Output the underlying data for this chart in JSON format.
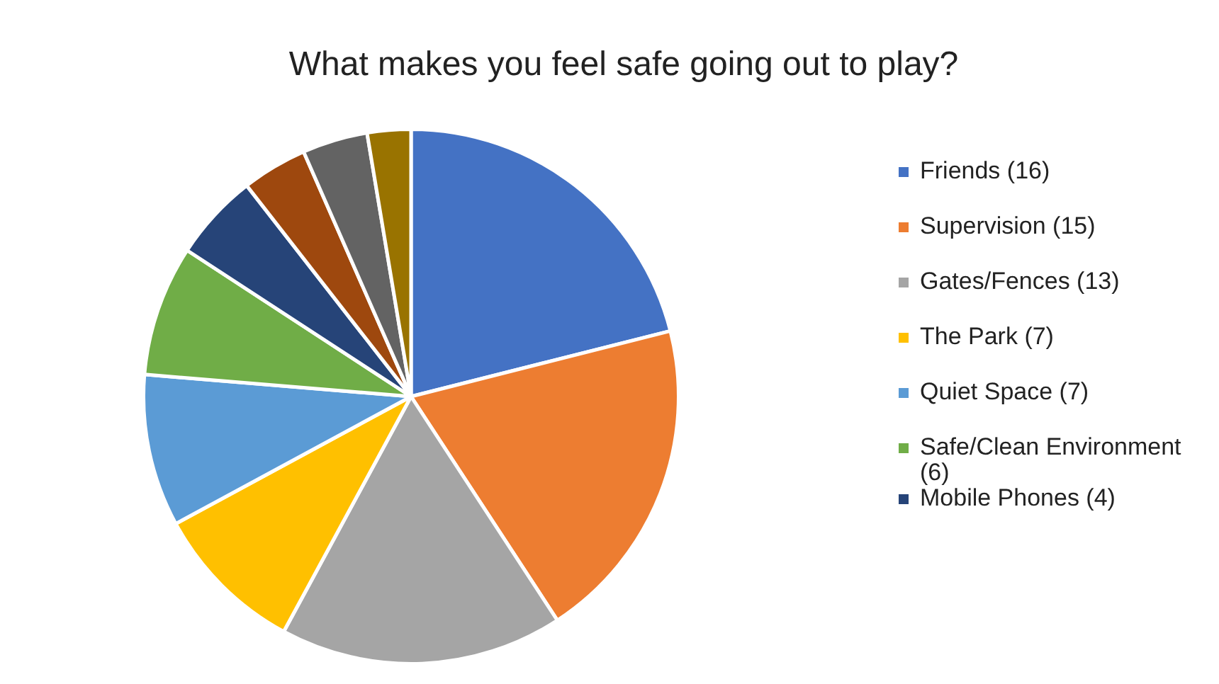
{
  "chart_data": {
    "type": "pie",
    "title": "What makes you feel safe going out to play?",
    "categories": [
      "Friends (16)",
      "Supervision (15)",
      "Gates/Fences (13)",
      "The Park (7)",
      "Quiet Space (7)",
      "Safe/Clean Environment (6)",
      "Mobile Phones (4)",
      null,
      null,
      null
    ],
    "values": [
      16,
      15,
      13,
      7,
      7,
      6,
      4,
      3,
      3,
      2
    ],
    "colors": [
      "#4472c4",
      "#ed7d31",
      "#a5a5a5",
      "#ffc000",
      "#5b9bd5",
      "#70ad47",
      "#264478",
      "#9e480e",
      "#636363",
      "#997300"
    ],
    "legend": "right"
  }
}
